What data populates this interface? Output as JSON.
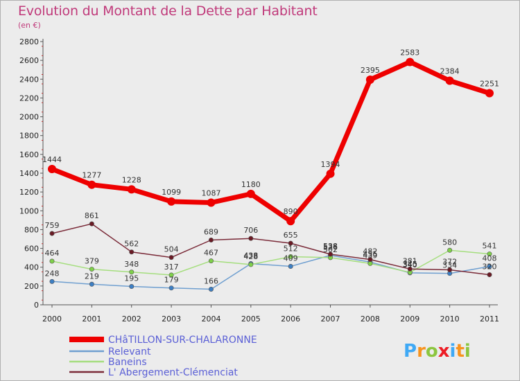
{
  "header": {
    "title": "Evolution du Montant de la Dette par Habitant",
    "subtitle": "(en €)"
  },
  "logo": {
    "text": "Proxiti",
    "colors": [
      "#3fa9f5",
      "#f7931e",
      "#8cc63f",
      "#ed1c24"
    ]
  },
  "chart_data": {
    "type": "line",
    "title": "Evolution du Montant de la Dette par Habitant",
    "ylabel": "(en €)",
    "xlabel": "",
    "x": [
      "2000",
      "2001",
      "2002",
      "2003",
      "2004",
      "2005",
      "2006",
      "2007",
      "2008",
      "2009",
      "2010",
      "2011"
    ],
    "ylim": [
      0,
      2800
    ],
    "yticks": [
      0,
      200,
      400,
      600,
      800,
      1000,
      1200,
      1400,
      1600,
      1800,
      2000,
      2200,
      2400,
      2600,
      2800
    ],
    "grid": false,
    "legend_position": "bottom-left",
    "series": [
      {
        "name": "CHâTILLON-SUR-CHALARONNE",
        "color": "#ee0000",
        "marker": "#ee0000",
        "thick": true,
        "values": [
          1444,
          1277,
          1228,
          1099,
          1087,
          1180,
          890,
          1394,
          2395,
          2583,
          2384,
          2251
        ],
        "labels": [
          "1444",
          "1277",
          "1228",
          "1099",
          "1087",
          "1180",
          "890",
          "1394",
          "2395",
          "2583",
          "2384",
          "2251"
        ]
      },
      {
        "name": "Relevant",
        "color": "#6f9fd0",
        "marker": "#3d7fc4",
        "thick": false,
        "values": [
          248,
          219,
          195,
          179,
          166,
          438,
          409,
          526,
          455,
          340,
          334,
          408
        ],
        "labels": [
          "248",
          "219",
          "195",
          "179",
          "166",
          "438",
          "409",
          "526",
          "455",
          "340",
          "334",
          "408"
        ]
      },
      {
        "name": "Baneins",
        "color": "#a5de7e",
        "marker": "#7fd04a",
        "thick": false,
        "values": [
          464,
          379,
          348,
          317,
          467,
          428,
          512,
          502,
          439,
          345,
          580,
          541
        ],
        "labels": [
          "464",
          "379",
          "348",
          "317",
          "467",
          "428",
          "512",
          "502",
          "439",
          "345",
          "580",
          "541"
        ]
      },
      {
        "name": "L' Abergement-Clémenciat",
        "color": "#7a2a38",
        "marker": "#6a1a24",
        "thick": false,
        "values": [
          759,
          861,
          562,
          504,
          689,
          706,
          655,
          538,
          482,
          381,
          372,
          320
        ],
        "labels": [
          "759",
          "861",
          "562",
          "504",
          "689",
          "706",
          "655",
          "538",
          "482",
          "381",
          "372",
          "320"
        ]
      }
    ]
  }
}
